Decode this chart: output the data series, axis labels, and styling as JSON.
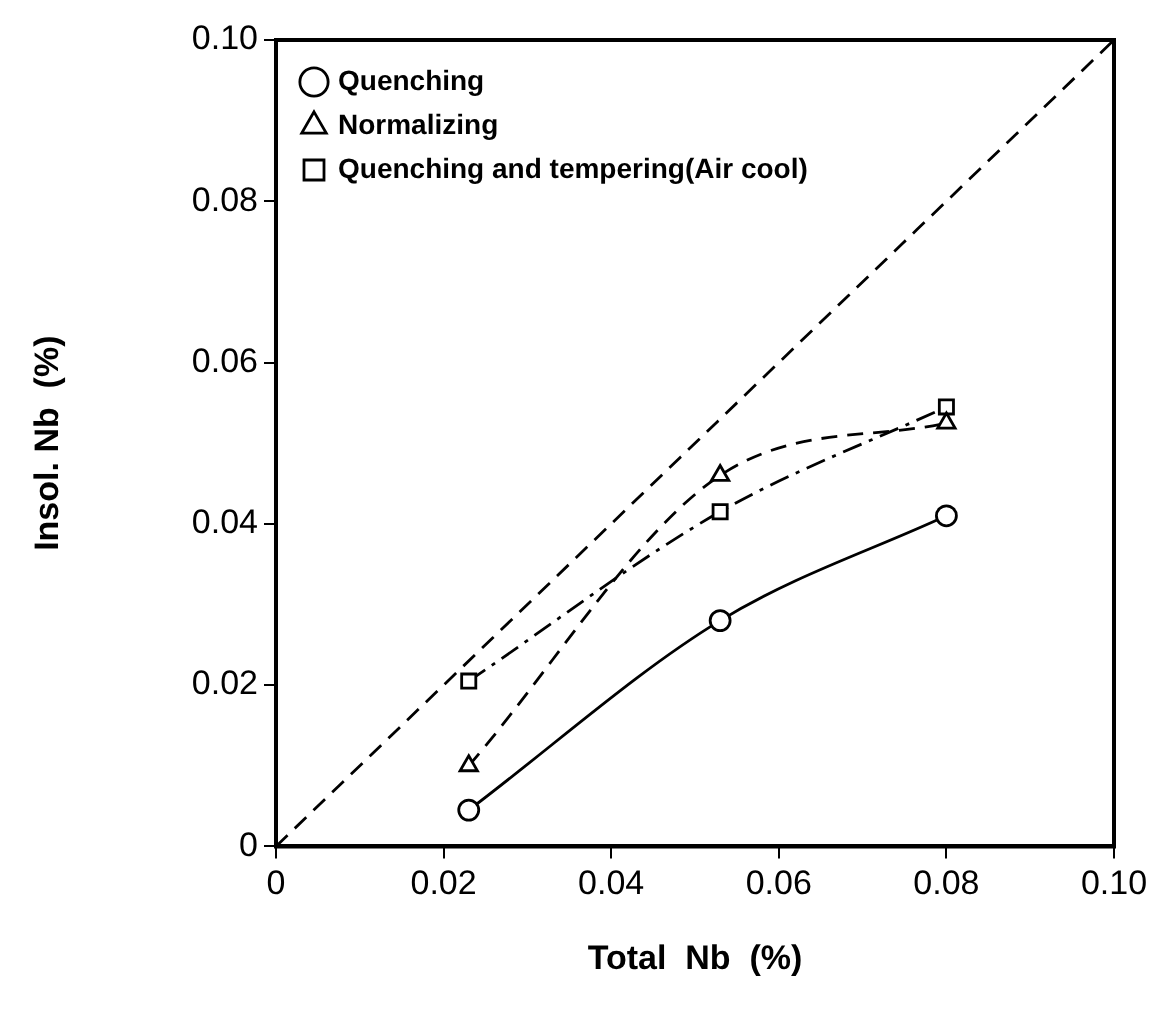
{
  "chart_data": {
    "type": "line",
    "xlabel": "Total  Nb  (%)",
    "ylabel": "Insol. Nb  (%)",
    "xlim": [
      0,
      0.1
    ],
    "ylim": [
      0,
      0.1
    ],
    "xticks": [
      0,
      0.02,
      0.04,
      0.06,
      0.08,
      {
        "value": 0.1,
        "label": "0.10"
      }
    ],
    "yticks": [
      0,
      0.02,
      0.04,
      0.06,
      0.08,
      {
        "value": 0.1,
        "label": "0.10"
      }
    ],
    "grid": false,
    "legend": "top left",
    "series": [
      {
        "name": "Quenching",
        "color": "#000000",
        "marker": "circle",
        "line_style": "solid",
        "x": [
          0.023,
          0.053,
          0.08
        ],
        "values": [
          0.0045,
          0.028,
          0.041
        ]
      },
      {
        "name": "Normalizing",
        "color": "#000000",
        "marker": "triangle",
        "line_style": "dashed",
        "x": [
          0.023,
          0.053,
          0.08
        ],
        "values": [
          0.01,
          0.046,
          0.0525
        ]
      },
      {
        "name": "Quenching and tempering(Air cool)",
        "color": "#000000",
        "marker": "square",
        "line_style": "dashdot",
        "x": [
          0.023,
          0.053,
          0.08
        ],
        "values": [
          0.0205,
          0.0415,
          0.0545
        ]
      },
      {
        "color": "#000000",
        "marker": "none",
        "line_style": "dashed",
        "x": [
          0,
          0.1
        ],
        "values": [
          0,
          0.1
        ]
      }
    ]
  }
}
